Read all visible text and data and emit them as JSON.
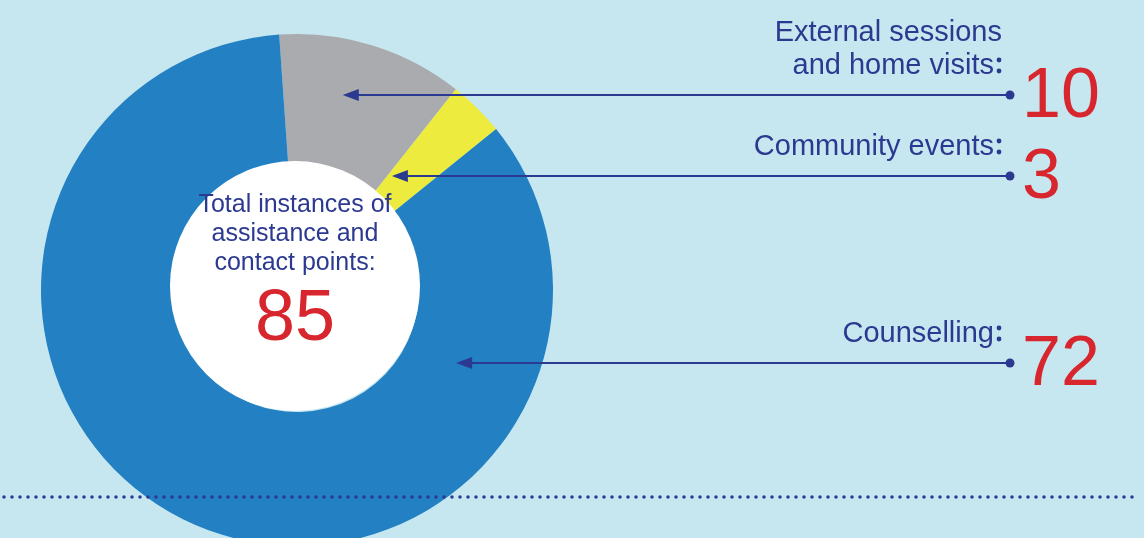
{
  "chart_data": {
    "type": "donut",
    "categories": [
      "External sessions and home visits",
      "Community events",
      "Counselling"
    ],
    "values": [
      10,
      3,
      72
    ],
    "colors": [
      "#a9abae",
      "#eeeb3f",
      "#2280c3"
    ],
    "data_labels": true,
    "annotations": [
      "Total instances of assistance and contact points:",
      "85"
    ]
  }
}
